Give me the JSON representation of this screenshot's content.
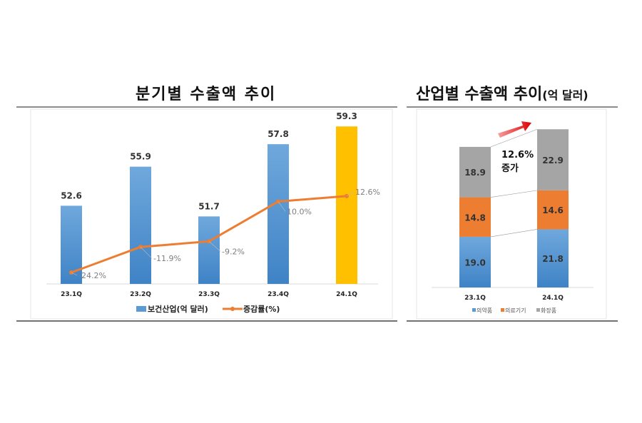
{
  "charts_titles": {
    "left": "분기별 수출액 추이",
    "right": "산업별 수출액 추이",
    "right_unit": "(억 달러)"
  },
  "chart_data": [
    {
      "type": "bar+line",
      "title": "분기별 수출액 추이",
      "categories": [
        "23.1Q",
        "23.2Q",
        "23.3Q",
        "23.4Q",
        "24.1Q"
      ],
      "series": [
        {
          "name": "보건산업(억 달러)",
          "type": "bar",
          "values": [
            52.6,
            55.9,
            51.7,
            57.8,
            59.3
          ],
          "labels": [
            "52.6",
            "55.9",
            "51.7",
            "57.8",
            "59.3"
          ],
          "color": "#5b9bd5",
          "highlight_color": "#ffc000"
        },
        {
          "name": "증감률(%)",
          "type": "line",
          "values": [
            -24.2,
            -11.9,
            -9.2,
            10.0,
            12.6
          ],
          "labels": [
            "-24.2%",
            "-11.9%",
            "-9.2%",
            "10.0%",
            "12.6%"
          ],
          "color": "#ed7d31"
        }
      ],
      "legend": "bottom",
      "grid": false
    },
    {
      "type": "stacked-bar",
      "title": "산업별 수출액 추이(억 달러)",
      "categories": [
        "23.1Q",
        "24.1Q"
      ],
      "series": [
        {
          "name": "의약품",
          "values": [
            19.0,
            21.8
          ],
          "labels": [
            "19.0",
            "21.8"
          ],
          "color": "#5b9bd5"
        },
        {
          "name": "의료기기",
          "values": [
            14.8,
            14.6
          ],
          "labels": [
            "14.8",
            "14.6"
          ],
          "color": "#ed7d31"
        },
        {
          "name": "화장품",
          "values": [
            18.9,
            22.9
          ],
          "labels": [
            "18.9",
            "22.9"
          ],
          "color": "#a5a5a5"
        }
      ],
      "annotation": {
        "line1": "12.6%",
        "line2": "증가"
      },
      "legend": "bottom",
      "grid": false
    }
  ]
}
